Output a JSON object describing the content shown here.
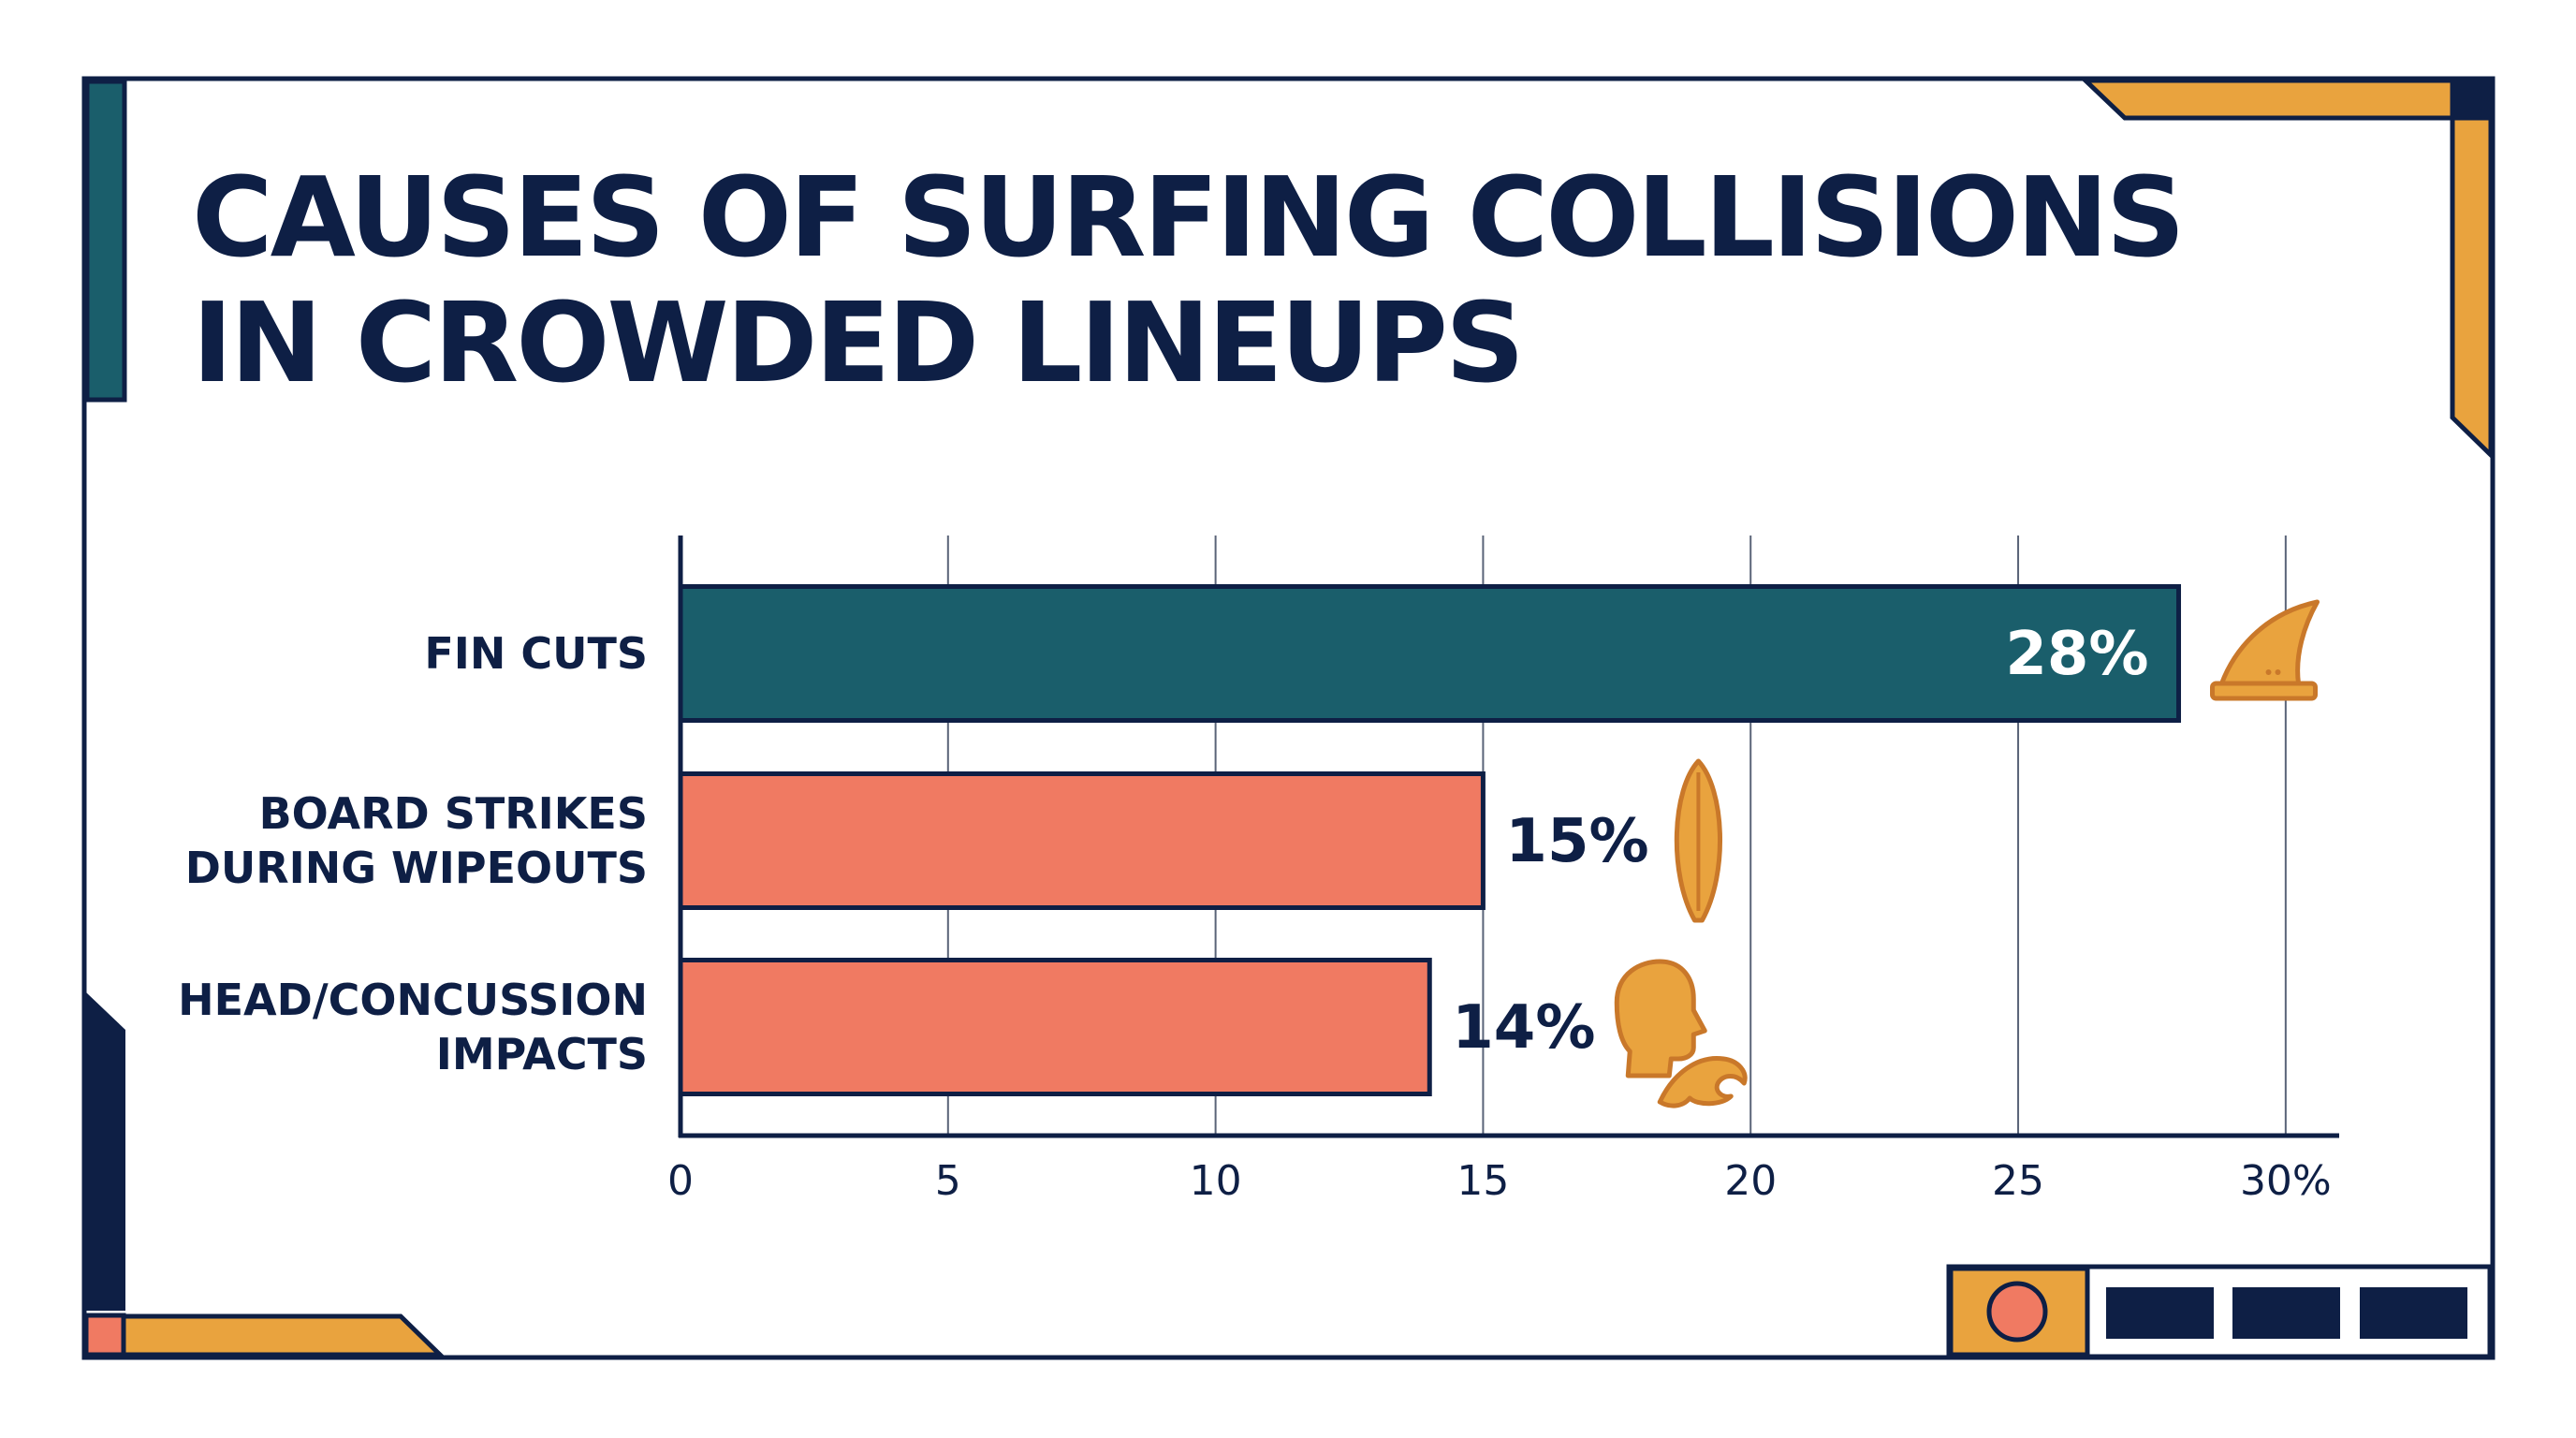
{
  "title_lines": [
    "CAUSES OF SURFING COLLISIONS",
    "IN CROWDED LINEUPS"
  ],
  "colors": {
    "navy": "#0e1f45",
    "teal": "#1a5e6b",
    "coral": "#f07a62",
    "orange": "#e9a33e",
    "grid": "#5a6478",
    "background": "#ffffff"
  },
  "chart_data": {
    "type": "bar",
    "orientation": "horizontal",
    "categories": [
      [
        "FIN CUTS"
      ],
      [
        "BOARD STRIKES",
        "DURING WIPEOUTS"
      ],
      [
        "HEAD/CONCUSSION",
        "IMPACTS"
      ]
    ],
    "values": [
      28,
      15,
      14
    ],
    "value_labels": [
      "28%",
      "15%",
      "14%"
    ],
    "bar_colors": [
      "#1a5e6b",
      "#f07a62",
      "#f07a62"
    ],
    "icons": [
      "fin-icon",
      "surfboard-icon",
      "head-wave-icon"
    ],
    "xticks": [
      "0",
      "5",
      "10",
      "15",
      "20",
      "25",
      "30%"
    ],
    "xlim": [
      0,
      31
    ],
    "grid": true,
    "xlabel": "",
    "ylabel": ""
  },
  "footer": {
    "slide_indicators": [
      "active",
      "inactive",
      "inactive",
      "inactive"
    ]
  }
}
